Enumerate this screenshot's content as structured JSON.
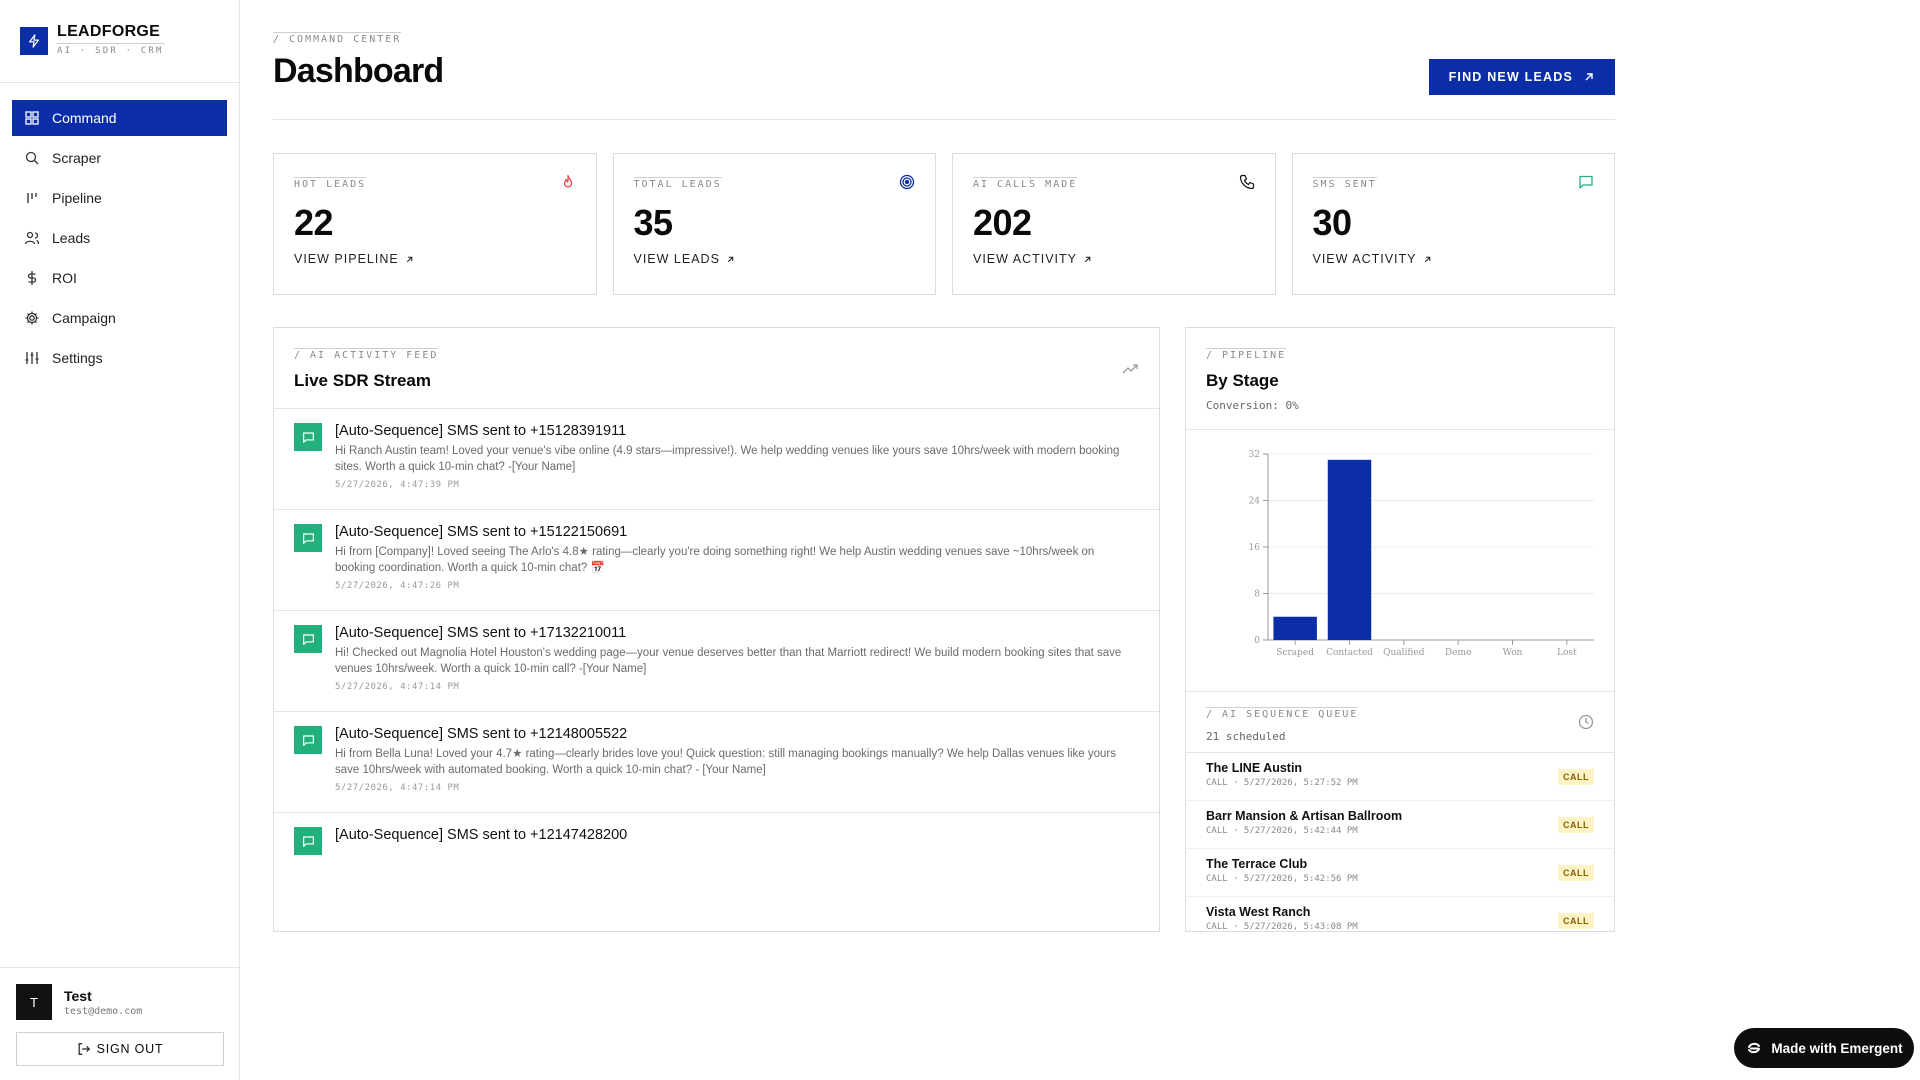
{
  "brand": {
    "name": "LEADFORGE",
    "tagline": "AI · SDR · CRM"
  },
  "nav": [
    {
      "label": "Command",
      "icon": "grid-icon",
      "active": true
    },
    {
      "label": "Scraper",
      "icon": "search-icon"
    },
    {
      "label": "Pipeline",
      "icon": "kanban-icon"
    },
    {
      "label": "Leads",
      "icon": "users-icon"
    },
    {
      "label": "ROI",
      "icon": "dollar-icon"
    },
    {
      "label": "Campaign",
      "icon": "gear-icon"
    },
    {
      "label": "Settings",
      "icon": "sliders-icon"
    }
  ],
  "user": {
    "initial": "T",
    "name": "Test",
    "email": "test@demo.com",
    "signout_label": "SIGN OUT"
  },
  "header": {
    "eyebrow": "/ COMMAND CENTER",
    "title": "Dashboard",
    "cta_label": "FIND NEW LEADS"
  },
  "stats": [
    {
      "label": "HOT LEADS",
      "value": "22",
      "link": "VIEW PIPELINE",
      "icon": "flame-icon",
      "color": "#e5484d"
    },
    {
      "label": "TOTAL LEADS",
      "value": "35",
      "link": "VIEW LEADS",
      "icon": "target-icon",
      "color": "#0b2ea8"
    },
    {
      "label": "AI CALLS MADE",
      "value": "202",
      "link": "VIEW ACTIVITY",
      "icon": "phone-icon",
      "color": "#111111"
    },
    {
      "label": "SMS SENT",
      "value": "30",
      "link": "VIEW ACTIVITY",
      "icon": "message-icon",
      "color": "#22b07d"
    }
  ],
  "feed": {
    "eyebrow": "/ AI ACTIVITY FEED",
    "title": "Live SDR Stream",
    "items": [
      {
        "title": "[Auto-Sequence] SMS sent to +15128391911",
        "message": "Hi Ranch Austin team! Loved your venue's vibe online (4.9 stars—impressive!). We help wedding venues like yours save 10hrs/week with modern booking sites. Worth a quick 10-min chat? -[Your Name]",
        "time": "5/27/2026, 4:47:39 PM"
      },
      {
        "title": "[Auto-Sequence] SMS sent to +15122150691",
        "message": "Hi from [Company]! Loved seeing The Arlo's 4.8★ rating—clearly you're doing something right! We help Austin wedding venues save ~10hrs/week on booking coordination. Worth a quick 10-min chat? 📅",
        "time": "5/27/2026, 4:47:26 PM"
      },
      {
        "title": "[Auto-Sequence] SMS sent to +17132210011",
        "message": "Hi! Checked out Magnolia Hotel Houston's wedding page—your venue deserves better than that Marriott redirect! We build modern booking sites that save venues 10hrs/week. Worth a quick 10-min call? -[Your Name]",
        "time": "5/27/2026, 4:47:14 PM"
      },
      {
        "title": "[Auto-Sequence] SMS sent to +12148005522",
        "message": "Hi from Bella Luna! Loved your 4.7★ rating—clearly brides love you! Quick question: still managing bookings manually? We help Dallas venues like yours save 10hrs/week with automated booking. Worth a quick 10-min chat? - [Your Name]",
        "time": "5/27/2026, 4:47:14 PM"
      },
      {
        "title": "[Auto-Sequence] SMS sent to +12147428200",
        "message": "",
        "time": ""
      }
    ]
  },
  "pipeline": {
    "eyebrow": "/ PIPELINE",
    "title": "By Stage",
    "conversion": "Conversion: 0%"
  },
  "chart_data": {
    "type": "bar",
    "categories": [
      "Scraped",
      "Contacted",
      "Qualified",
      "Demo",
      "Won",
      "Lost"
    ],
    "values": [
      4,
      31,
      0,
      0,
      0,
      0
    ],
    "ylim": [
      0,
      32
    ],
    "yticks": [
      0,
      8,
      16,
      24,
      32
    ],
    "grid": true,
    "bar_color": "#0b2ea8"
  },
  "queue": {
    "eyebrow": "/ AI SEQUENCE QUEUE",
    "count": "21 scheduled",
    "items": [
      {
        "name": "The LINE Austin",
        "meta": "CALL · 5/27/2026, 5:27:52 PM",
        "badge": "CALL"
      },
      {
        "name": "Barr Mansion & Artisan Ballroom",
        "meta": "CALL · 5/27/2026, 5:42:44 PM",
        "badge": "CALL"
      },
      {
        "name": "The Terrace Club",
        "meta": "CALL · 5/27/2026, 5:42:56 PM",
        "badge": "CALL"
      },
      {
        "name": "Vista West Ranch",
        "meta": "CALL · 5/27/2026, 5:43:08 PM",
        "badge": "CALL"
      }
    ]
  },
  "badge": {
    "label": "Made with Emergent"
  }
}
